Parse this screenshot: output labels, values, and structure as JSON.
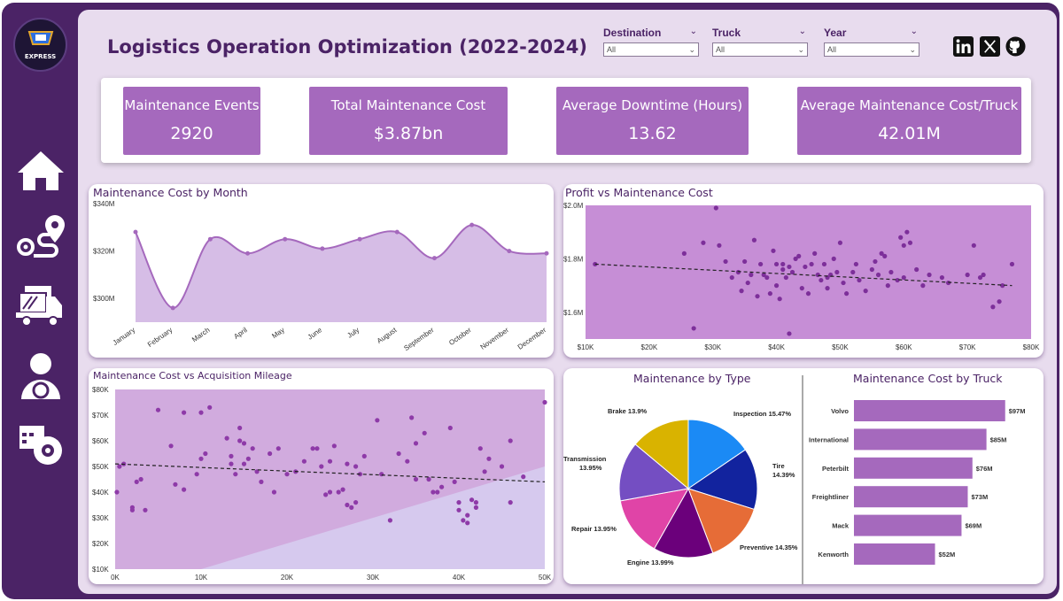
{
  "header": {
    "title": "Logistics Operation Optimization (2022-2024)",
    "logo_text": "EXPRESS"
  },
  "filters": [
    {
      "label": "Destination",
      "value": "All"
    },
    {
      "label": "Truck",
      "value": "All"
    },
    {
      "label": "Year",
      "value": "All"
    }
  ],
  "social": [
    "linkedin-icon",
    "x-icon",
    "github-icon"
  ],
  "nav": [
    "home-icon",
    "route-icon",
    "trucks-icon",
    "driver-icon",
    "schedule-gear-icon"
  ],
  "kpis": [
    {
      "label": "Maintenance Events",
      "value": "2920"
    },
    {
      "label": "Total Maintenance Cost",
      "value": "$3.87bn"
    },
    {
      "label": "Average Downtime (Hours)",
      "value": "13.62"
    },
    {
      "label": "Average Maintenance Cost/Truck",
      "value": "42.01M"
    }
  ],
  "colors": {
    "frame": "#4b2366",
    "background": "#e8dcee",
    "accent": "#a569bd",
    "point": "#8e3aa8"
  },
  "chart_data": [
    {
      "type": "area",
      "title": "Maintenance Cost by Month",
      "categories": [
        "January",
        "February",
        "March",
        "April",
        "May",
        "June",
        "July",
        "August",
        "September",
        "October",
        "November",
        "December"
      ],
      "values": [
        328,
        296,
        325,
        319,
        325,
        321,
        325,
        328,
        317,
        331,
        320,
        319
      ],
      "unit": "M",
      "y_ticks": [
        "$340M",
        "$320M",
        "$300M"
      ],
      "ylim": [
        290,
        340
      ]
    },
    {
      "type": "scatter",
      "title": "Profit vs Maintenance Cost",
      "x_ticks": [
        "$10K",
        "$20K",
        "$30K",
        "$40K",
        "$50K",
        "$60K",
        "$70K",
        "$80K"
      ],
      "y_ticks": [
        "$2.0M",
        "$1.8M",
        "$1.6M"
      ],
      "xlim": [
        10,
        80
      ],
      "ylim": [
        1.5,
        2.0
      ],
      "points": [
        [
          11.5,
          1.78
        ],
        [
          25.5,
          1.82
        ],
        [
          27,
          1.54
        ],
        [
          28.5,
          1.86
        ],
        [
          30.5,
          1.99
        ],
        [
          31,
          1.85
        ],
        [
          32,
          1.79
        ],
        [
          33,
          1.73
        ],
        [
          34,
          1.75
        ],
        [
          34.5,
          1.68
        ],
        [
          35,
          1.79
        ],
        [
          35.5,
          1.71
        ],
        [
          36,
          1.74
        ],
        [
          36.5,
          1.87
        ],
        [
          37,
          1.66
        ],
        [
          37.5,
          1.78
        ],
        [
          38,
          1.74
        ],
        [
          38.5,
          1.73
        ],
        [
          39,
          1.67
        ],
        [
          39.5,
          1.83
        ],
        [
          40,
          1.78
        ],
        [
          40,
          1.7
        ],
        [
          40.5,
          1.65
        ],
        [
          41,
          1.78
        ],
        [
          41,
          1.76
        ],
        [
          41.5,
          1.73
        ],
        [
          42,
          1.77
        ],
        [
          42,
          1.52
        ],
        [
          42.5,
          1.75
        ],
        [
          43,
          1.8
        ],
        [
          43.5,
          1.81
        ],
        [
          44,
          1.69
        ],
        [
          44.5,
          1.77
        ],
        [
          45,
          1.67
        ],
        [
          45.5,
          1.78
        ],
        [
          46,
          1.82
        ],
        [
          46.5,
          1.74
        ],
        [
          47,
          1.72
        ],
        [
          47.5,
          1.78
        ],
        [
          48,
          1.73
        ],
        [
          48,
          1.69
        ],
        [
          48.5,
          1.74
        ],
        [
          49,
          1.8
        ],
        [
          49.5,
          1.75
        ],
        [
          50,
          1.86
        ],
        [
          50.5,
          1.71
        ],
        [
          51,
          1.67
        ],
        [
          52,
          1.75
        ],
        [
          52.5,
          1.78
        ],
        [
          53,
          1.72
        ],
        [
          54,
          1.68
        ],
        [
          55,
          1.76
        ],
        [
          55.5,
          1.79
        ],
        [
          56,
          1.74
        ],
        [
          56.5,
          1.82
        ],
        [
          57,
          1.81
        ],
        [
          57.5,
          1.7
        ],
        [
          58,
          1.75
        ],
        [
          59,
          1.72
        ],
        [
          59.5,
          1.88
        ],
        [
          60,
          1.73
        ],
        [
          60,
          1.85
        ],
        [
          60.5,
          1.9
        ],
        [
          61,
          1.86
        ],
        [
          62,
          1.76
        ],
        [
          63,
          1.7
        ],
        [
          64,
          1.74
        ],
        [
          66,
          1.73
        ],
        [
          67,
          1.71
        ],
        [
          70,
          1.74
        ],
        [
          71,
          1.85
        ],
        [
          72,
          1.73
        ],
        [
          72.5,
          1.74
        ],
        [
          74,
          1.62
        ],
        [
          75,
          1.64
        ],
        [
          75.5,
          1.7
        ],
        [
          77,
          1.78
        ]
      ],
      "trend": [
        [
          11.5,
          1.78
        ],
        [
          77,
          1.7
        ]
      ]
    },
    {
      "type": "scatter",
      "title": "Maintenance Cost vs Acquisition Mileage",
      "x_ticks": [
        "0K",
        "10K",
        "20K",
        "30K",
        "40K",
        "50K"
      ],
      "y_ticks": [
        "$80K",
        "$70K",
        "$60K",
        "$50K",
        "$40K",
        "$30K",
        "$20K",
        "$10K"
      ],
      "xlim": [
        0,
        50
      ],
      "ylim": [
        10,
        80
      ],
      "points": [
        [
          0.2,
          40
        ],
        [
          0.5,
          50
        ],
        [
          1,
          51
        ],
        [
          2,
          33
        ],
        [
          2,
          34
        ],
        [
          2.5,
          44
        ],
        [
          3,
          45
        ],
        [
          3.5,
          33
        ],
        [
          5,
          72
        ],
        [
          6.5,
          58
        ],
        [
          7,
          43
        ],
        [
          8,
          41
        ],
        [
          8,
          71
        ],
        [
          9.5,
          47
        ],
        [
          10,
          71
        ],
        [
          10,
          53
        ],
        [
          10.5,
          55
        ],
        [
          11,
          73
        ],
        [
          13,
          61
        ],
        [
          13.5,
          51
        ],
        [
          13.5,
          54
        ],
        [
          14,
          47
        ],
        [
          14.5,
          65
        ],
        [
          14.5,
          60
        ],
        [
          15,
          59
        ],
        [
          15,
          51
        ],
        [
          15.5,
          53
        ],
        [
          16,
          57
        ],
        [
          16.5,
          48
        ],
        [
          17,
          44
        ],
        [
          18,
          55
        ],
        [
          18.5,
          40
        ],
        [
          19,
          57
        ],
        [
          20,
          47
        ],
        [
          21,
          48
        ],
        [
          22,
          52
        ],
        [
          23,
          57
        ],
        [
          23.5,
          57
        ],
        [
          24,
          50
        ],
        [
          24.5,
          39
        ],
        [
          25,
          52
        ],
        [
          25,
          40
        ],
        [
          25.5,
          58
        ],
        [
          26,
          40
        ],
        [
          26.5,
          41
        ],
        [
          27,
          51
        ],
        [
          27,
          35
        ],
        [
          27.5,
          34
        ],
        [
          28,
          50
        ],
        [
          28,
          36
        ],
        [
          28.5,
          47
        ],
        [
          29,
          54
        ],
        [
          30.5,
          68
        ],
        [
          31,
          47
        ],
        [
          32,
          29
        ],
        [
          33,
          55
        ],
        [
          34,
          52
        ],
        [
          34.5,
          69
        ],
        [
          35,
          45
        ],
        [
          35,
          59
        ],
        [
          36,
          63
        ],
        [
          36.5,
          45
        ],
        [
          37,
          40
        ],
        [
          37.5,
          40
        ],
        [
          38,
          42
        ],
        [
          39,
          65
        ],
        [
          39.5,
          44
        ],
        [
          40,
          33
        ],
        [
          40,
          36
        ],
        [
          40.5,
          29
        ],
        [
          41,
          31
        ],
        [
          41,
          28
        ],
        [
          41.5,
          37
        ],
        [
          42,
          34
        ],
        [
          42,
          36
        ],
        [
          42.5,
          57
        ],
        [
          43,
          48
        ],
        [
          43.5,
          53
        ],
        [
          45,
          50
        ],
        [
          46,
          60
        ],
        [
          46,
          36
        ],
        [
          47.5,
          46
        ],
        [
          50,
          75
        ]
      ],
      "trend": [
        [
          0,
          51
        ],
        [
          50,
          44
        ]
      ]
    },
    {
      "type": "pie",
      "title": "Maintenance by Type",
      "slices": [
        {
          "label": "Inspection 15.47%",
          "value": 15.47,
          "color": "#1b8af5"
        },
        {
          "label": "Tire 14.39%",
          "value": 14.39,
          "color": "#12239e"
        },
        {
          "label": "Preventive 14.35%",
          "value": 14.35,
          "color": "#e66c37"
        },
        {
          "label": "Engine 13.99%",
          "value": 13.99,
          "color": "#6b007b"
        },
        {
          "label": "Repair 13.95%",
          "value": 13.95,
          "color": "#e044a7"
        },
        {
          "label": "Transmission 13.95%",
          "value": 13.95,
          "color": "#744ec2"
        },
        {
          "label": "Brake 13.9%",
          "value": 13.9,
          "color": "#d9b300"
        }
      ]
    },
    {
      "type": "bar",
      "title": "Maintenance Cost by Truck",
      "categories": [
        "Volvo",
        "International",
        "Peterbilt",
        "Freightliner",
        "Mack",
        "Kenworth"
      ],
      "values": [
        97,
        85,
        76,
        73,
        69,
        52
      ],
      "labels": [
        "$97M",
        "$85M",
        "$76M",
        "$73M",
        "$69M",
        "$52M"
      ],
      "xlim": [
        0,
        100
      ]
    }
  ]
}
